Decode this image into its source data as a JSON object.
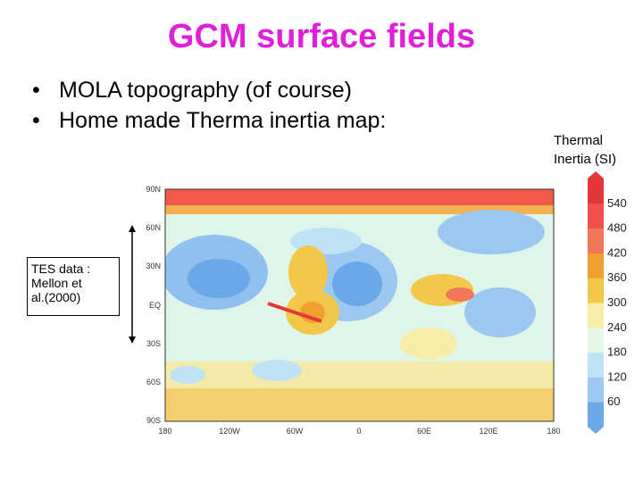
{
  "slide": {
    "title": "GCM surface fields",
    "bullets": [
      "MOLA topography (of course)",
      "Home made Therma inertia map:"
    ],
    "bullet_symbol": "•"
  },
  "tes_note": {
    "lines": [
      "TES data :",
      "Mellon et",
      "al.(2000)"
    ]
  },
  "legend": {
    "title_lines": [
      "Thermal",
      "Inertia (SI)"
    ],
    "ticks": [
      "540",
      "480",
      "420",
      "360",
      "300",
      "240",
      "180",
      "120",
      "60"
    ],
    "colors": [
      "#6aa8e8",
      "#9cc8f0",
      "#bfe3f5",
      "#e6f7e6",
      "#f5eda8",
      "#f2c84a",
      "#f0a030",
      "#f07858",
      "#f05050",
      "#e43838"
    ]
  },
  "map": {
    "lat_labels": [
      "90N",
      "60N",
      "30N",
      "EQ",
      "30S",
      "60S",
      "90S"
    ],
    "lon_labels": [
      "180",
      "120W",
      "60W",
      "0",
      "60E",
      "120E",
      "180"
    ]
  }
}
